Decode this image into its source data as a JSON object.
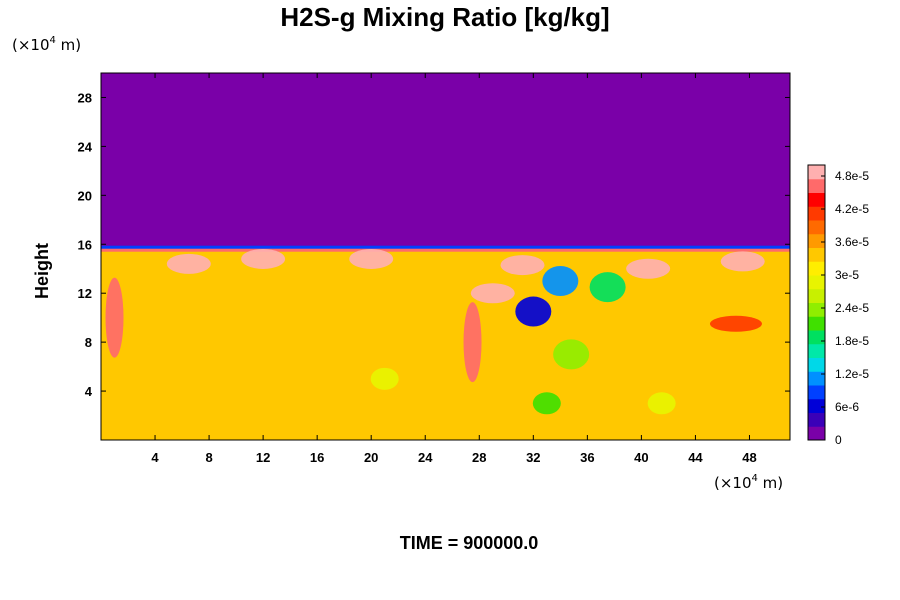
{
  "chart_data": {
    "type": "heatmap",
    "title": "H2S-g Mixing Ratio [kg/kg]",
    "ylabel": "Height",
    "x_unit": {
      "prefix": "(×10",
      "exp": "4",
      "suffix": " m)"
    },
    "y_unit": {
      "prefix": "(×10",
      "exp": "4",
      "suffix": " m)"
    },
    "xlim": [
      0,
      51
    ],
    "ylim": [
      0,
      30
    ],
    "x_ticks": [
      4,
      8,
      12,
      16,
      20,
      24,
      28,
      32,
      36,
      40,
      44,
      48
    ],
    "y_ticks": [
      4,
      8,
      12,
      16,
      20,
      24,
      28
    ],
    "x_tick_labels": [
      "4",
      "8",
      "12",
      "16",
      "20",
      "24",
      "28",
      "32",
      "36",
      "40",
      "44",
      "48"
    ],
    "y_tick_labels": [
      "4",
      "8",
      "12",
      "16",
      "20",
      "24",
      "28"
    ],
    "colorbar": {
      "range": [
        0,
        5e-05
      ],
      "tick_values": [
        0,
        6e-06,
        1.2e-05,
        1.8e-05,
        2.4e-05,
        3e-05,
        3.6e-05,
        4.2e-05,
        4.8e-05
      ],
      "tick_labels": [
        "0",
        "6e-6",
        "1.2e-5",
        "1.8e-5",
        "2.4e-5",
        "3e-5",
        "3.6e-5",
        "4.2e-5",
        "4.8e-5"
      ],
      "colors": [
        "#7a00a8",
        "#3a00b8",
        "#0000d8",
        "#0040ff",
        "#0090ff",
        "#00d8e8",
        "#00e8a8",
        "#00e060",
        "#40e000",
        "#90ee00",
        "#c8f000",
        "#e8f400",
        "#ffee00",
        "#ffc800",
        "#ff9a00",
        "#ff6a00",
        "#ff3a00",
        "#ff0000",
        "#ff6a6a",
        "#ffb0b0"
      ]
    },
    "field": {
      "background_value": 3.3e-05,
      "upper_value": 0,
      "interface_height": 15.8,
      "features": [
        {
          "kind": "cap",
          "x": 6.5,
          "y": 14.4,
          "value": 5.15e-05
        },
        {
          "kind": "cap",
          "x": 12,
          "y": 14.8,
          "value": 5.15e-05
        },
        {
          "kind": "cap",
          "x": 20,
          "y": 14.8,
          "value": 5.15e-05
        },
        {
          "kind": "cap",
          "x": 29,
          "y": 12,
          "value": 5.15e-05
        },
        {
          "kind": "cap",
          "x": 31.2,
          "y": 14.3,
          "value": 5.15e-05
        },
        {
          "kind": "cap",
          "x": 40.5,
          "y": 14,
          "value": 5.15e-05
        },
        {
          "kind": "cap",
          "x": 47.5,
          "y": 14.6,
          "value": 5.15e-05
        },
        {
          "kind": "plume",
          "x": 32,
          "y": 10.5,
          "value": 6e-06
        },
        {
          "kind": "plume",
          "x": 34,
          "y": 13,
          "value": 1.2e-05
        },
        {
          "kind": "plume",
          "x": 37.5,
          "y": 12.5,
          "value": 1.8e-05
        },
        {
          "kind": "plume",
          "x": 34.8,
          "y": 7,
          "value": 2.4e-05
        },
        {
          "kind": "eddy",
          "x": 33,
          "y": 3,
          "value": 2.2e-05
        },
        {
          "kind": "eddy",
          "x": 21,
          "y": 5,
          "value": 2.8e-05
        },
        {
          "kind": "eddy",
          "x": 41.5,
          "y": 3,
          "value": 2.8e-05
        },
        {
          "kind": "wall",
          "x": 1,
          "y": 10,
          "value": 4.5e-05
        },
        {
          "kind": "wall",
          "x": 27.5,
          "y": 8,
          "value": 4.5e-05
        },
        {
          "kind": "band",
          "x": 47,
          "y": 9.5,
          "value": 4e-05
        }
      ]
    }
  },
  "footer": {
    "time_label": "TIME = 900000.0"
  }
}
